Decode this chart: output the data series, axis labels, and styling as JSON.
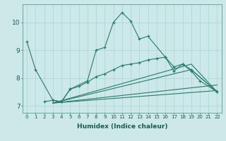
{
  "xlabel": "Humidex (Indice chaleur)",
  "background_color": "#cde8e8",
  "line_color": "#2a7a6a",
  "grid_color": "#a8d4d4",
  "xlim": [
    -0.5,
    22.5
  ],
  "ylim": [
    6.75,
    10.65
  ],
  "yticks": [
    7,
    8,
    9,
    10
  ],
  "xticks": [
    0,
    1,
    2,
    3,
    4,
    5,
    6,
    7,
    8,
    9,
    10,
    11,
    12,
    13,
    14,
    15,
    16,
    17,
    18,
    19,
    20,
    21,
    22
  ],
  "series": [
    {
      "x": [
        0,
        1,
        3,
        4,
        5,
        7,
        8,
        9,
        10,
        11,
        12,
        13,
        14,
        16,
        17,
        18,
        19,
        20,
        22
      ],
      "y": [
        9.3,
        8.3,
        7.2,
        7.15,
        7.6,
        7.9,
        9.0,
        9.1,
        10.0,
        10.35,
        10.05,
        9.4,
        9.5,
        8.75,
        8.4,
        8.5,
        8.25,
        7.9,
        7.5
      ],
      "markers": true
    },
    {
      "x": [
        2,
        3,
        4,
        5,
        6,
        7,
        8,
        9,
        10,
        11,
        12,
        13,
        14,
        15,
        16,
        17,
        18,
        19,
        22
      ],
      "y": [
        7.15,
        7.2,
        7.15,
        7.6,
        7.7,
        7.85,
        8.05,
        8.15,
        8.3,
        8.45,
        8.5,
        8.55,
        8.65,
        8.7,
        8.75,
        8.25,
        8.5,
        8.3,
        7.5
      ],
      "markers": true
    },
    {
      "x": [
        3,
        22
      ],
      "y": [
        7.1,
        7.55
      ],
      "markers": false
    },
    {
      "x": [
        3,
        22
      ],
      "y": [
        7.1,
        7.75
      ],
      "markers": false
    },
    {
      "x": [
        3,
        19,
        22
      ],
      "y": [
        7.1,
        8.3,
        7.5
      ],
      "markers": false
    },
    {
      "x": [
        3,
        19,
        22
      ],
      "y": [
        7.1,
        8.5,
        7.5
      ],
      "markers": false
    }
  ]
}
